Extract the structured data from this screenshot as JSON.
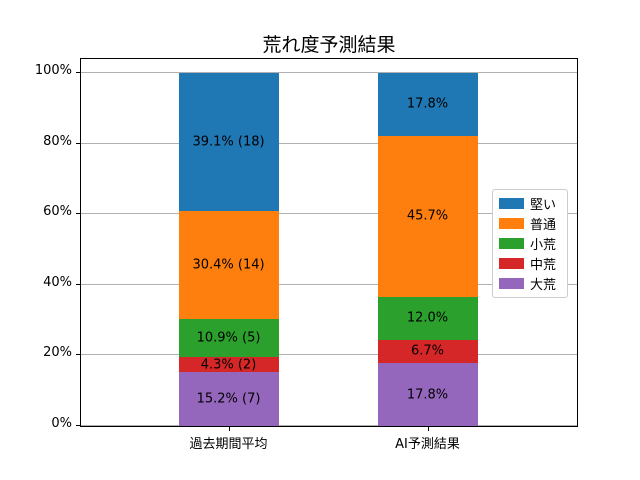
{
  "chart_data": {
    "type": "bar",
    "stacked": true,
    "title": "荒れ度予測結果",
    "categories": [
      "過去期間平均",
      "AI予測結果"
    ],
    "series": [
      {
        "name": "堅い",
        "color": "#1f77b4",
        "values": [
          39.1,
          17.8
        ],
        "counts": [
          18,
          null
        ],
        "bar_labels": [
          "39.1% (18)",
          "17.8%"
        ]
      },
      {
        "name": "普通",
        "color": "#ff7f0e",
        "values": [
          30.4,
          45.7
        ],
        "counts": [
          14,
          null
        ],
        "bar_labels": [
          "30.4% (14)",
          "45.7%"
        ]
      },
      {
        "name": "小荒",
        "color": "#2ca02c",
        "values": [
          10.9,
          12.0
        ],
        "counts": [
          5,
          null
        ],
        "bar_labels": [
          "10.9% (5)",
          "12.0%"
        ]
      },
      {
        "name": "中荒",
        "color": "#d62728",
        "values": [
          4.3,
          6.7
        ],
        "counts": [
          2,
          null
        ],
        "bar_labels": [
          "4.3% (2)",
          "6.7%"
        ]
      },
      {
        "name": "大荒",
        "color": "#9467bd",
        "values": [
          15.2,
          17.8
        ],
        "counts": [
          7,
          null
        ],
        "bar_labels": [
          "15.2% (7)",
          "17.8%"
        ]
      }
    ],
    "stack_order_bottom_to_top": [
      "大荒",
      "中荒",
      "小荒",
      "普通",
      "堅い"
    ],
    "xlabel": "",
    "ylabel": "",
    "ytick_values": [
      0,
      20,
      40,
      60,
      80,
      100
    ],
    "ytick_labels": [
      "0%",
      "20%",
      "40%",
      "60%",
      "80%",
      "100%"
    ],
    "ylim": [
      0,
      104
    ],
    "grid": "horizontal",
    "grid_color": "#b0b0b0",
    "legend": {
      "position": "center-right",
      "entries": [
        "堅い",
        "普通",
        "小荒",
        "中荒",
        "大荒"
      ]
    }
  }
}
